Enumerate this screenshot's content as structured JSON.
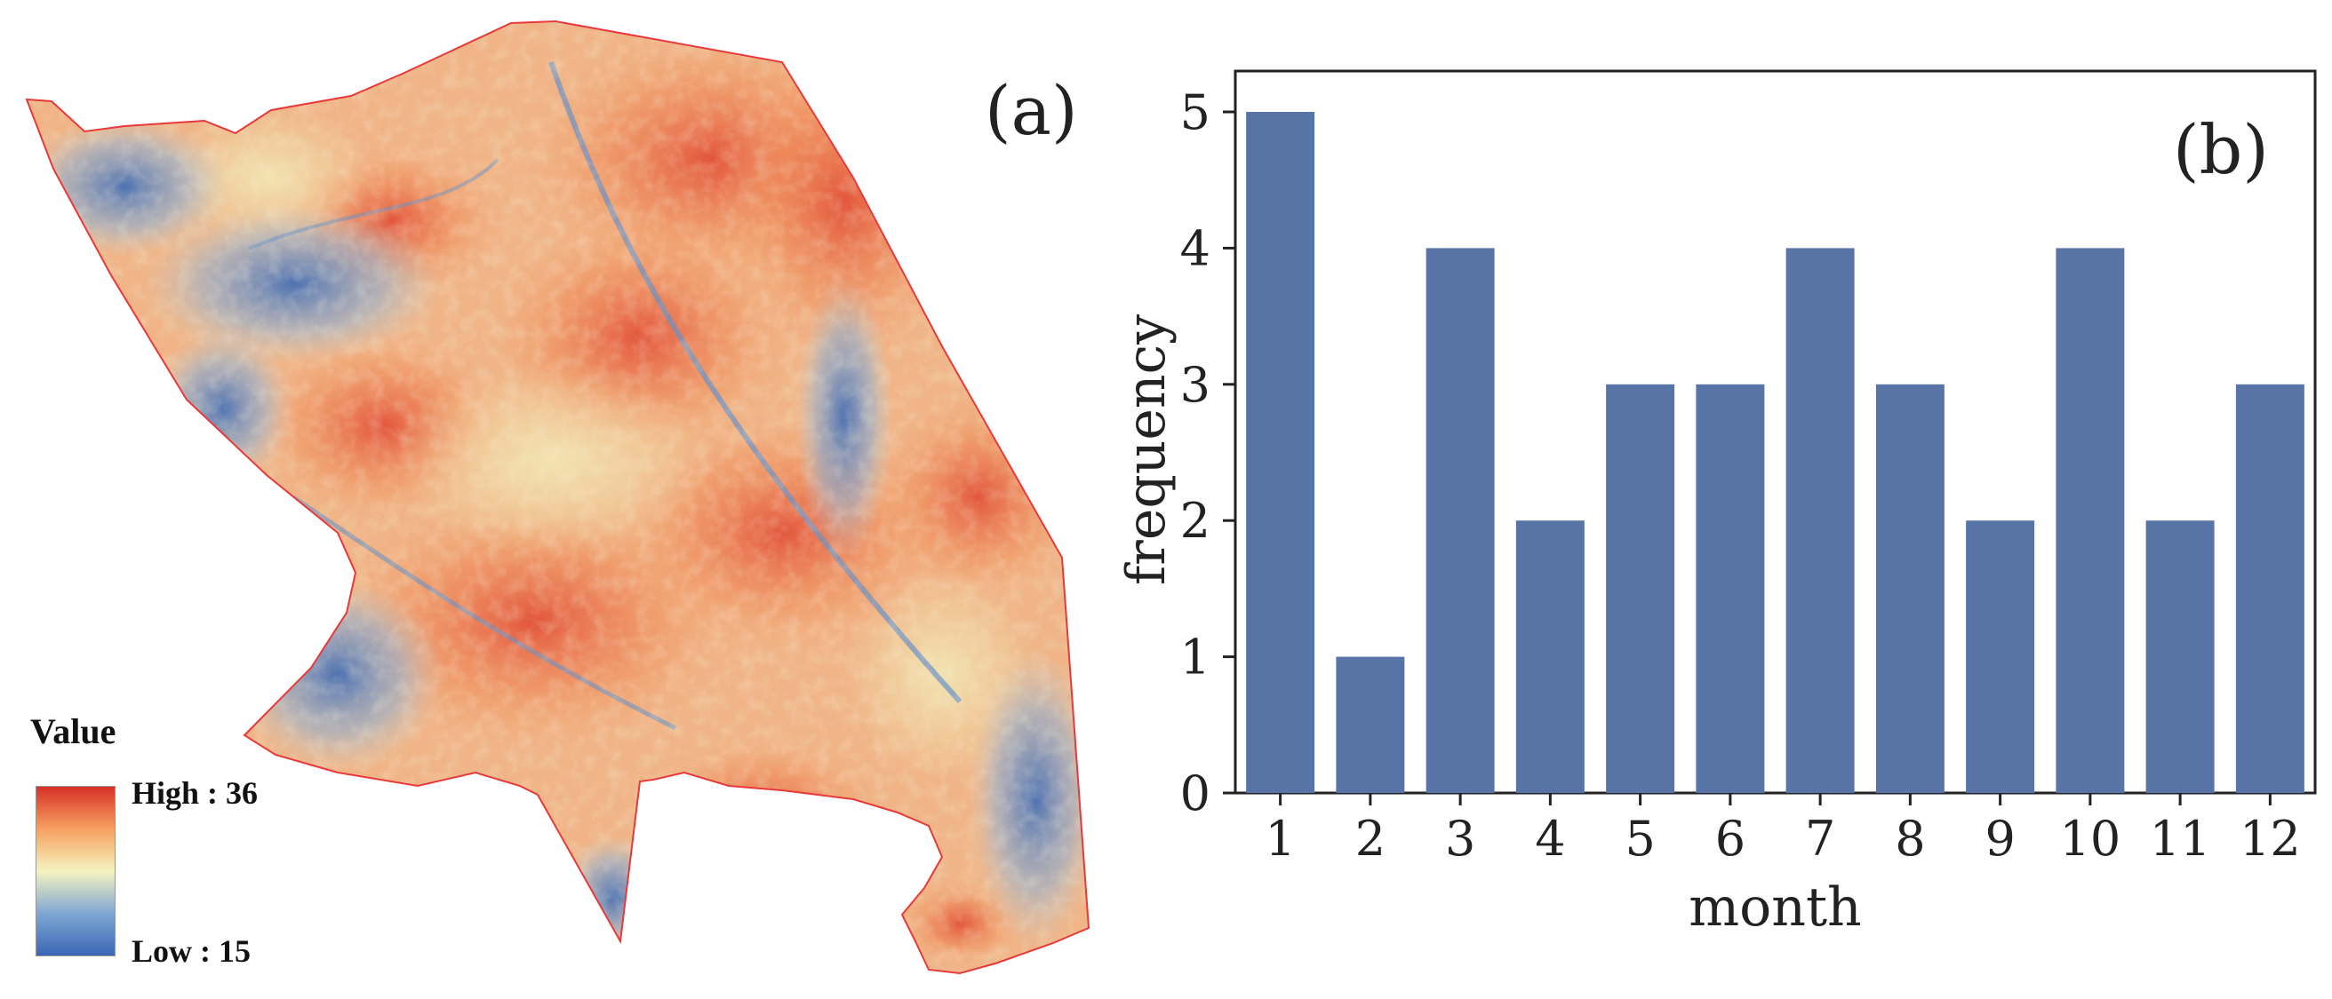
{
  "map": {
    "panel_label": "(a)",
    "legend": {
      "title": "Value",
      "high_label": "High : 36",
      "low_label": "Low : 15",
      "colors": [
        "#3a66b5",
        "#7fa7d3",
        "#f5f3c0",
        "#f7a060",
        "#d73027"
      ]
    },
    "boundary_color": "#e8393a"
  },
  "chart_data": {
    "type": "bar",
    "panel_label": "(b)",
    "categories": [
      "1",
      "2",
      "3",
      "4",
      "5",
      "6",
      "7",
      "8",
      "9",
      "10",
      "11",
      "12"
    ],
    "values": [
      5,
      1,
      4,
      2,
      3,
      3,
      4,
      3,
      2,
      4,
      2,
      3
    ],
    "xlabel": "month",
    "ylabel": "frequency",
    "yticks": [
      "0",
      "1",
      "2",
      "3",
      "4",
      "5"
    ],
    "ylim": [
      0,
      5.3
    ],
    "bar_color": "#5874a6",
    "grid": false
  }
}
